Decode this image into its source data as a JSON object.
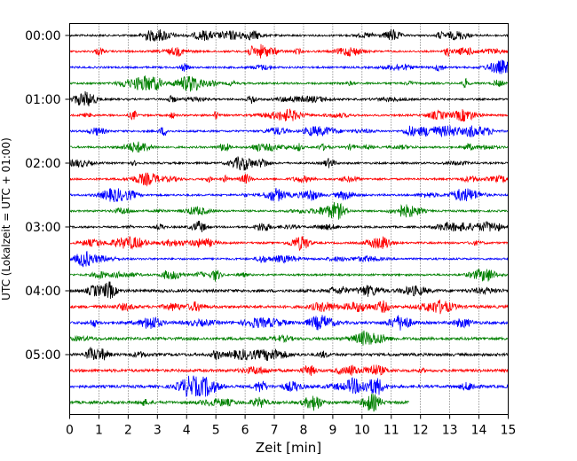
{
  "chart_data": {
    "type": "line",
    "title": "",
    "xlabel": "Zeit  [min]",
    "ylabel": "UTC (Lokalzeit = UTC + 01:00)",
    "xlim": [
      0,
      15
    ],
    "x_ticks": [
      "0",
      "1",
      "2",
      "3",
      "4",
      "5",
      "6",
      "7",
      "8",
      "9",
      "10",
      "11",
      "12",
      "13",
      "14",
      "15"
    ],
    "y_ticks": [
      "00:00",
      "01:00",
      "02:00",
      "03:00",
      "04:00",
      "05:00"
    ],
    "row_minutes": 15,
    "rows_start": "00:00",
    "rows_count": 24,
    "last_row_end_min": 11.6,
    "grid": "vertical dotted at each minute",
    "trace_colors": [
      "#000000",
      "#ff0000",
      "#0000ff",
      "#008000"
    ]
  }
}
